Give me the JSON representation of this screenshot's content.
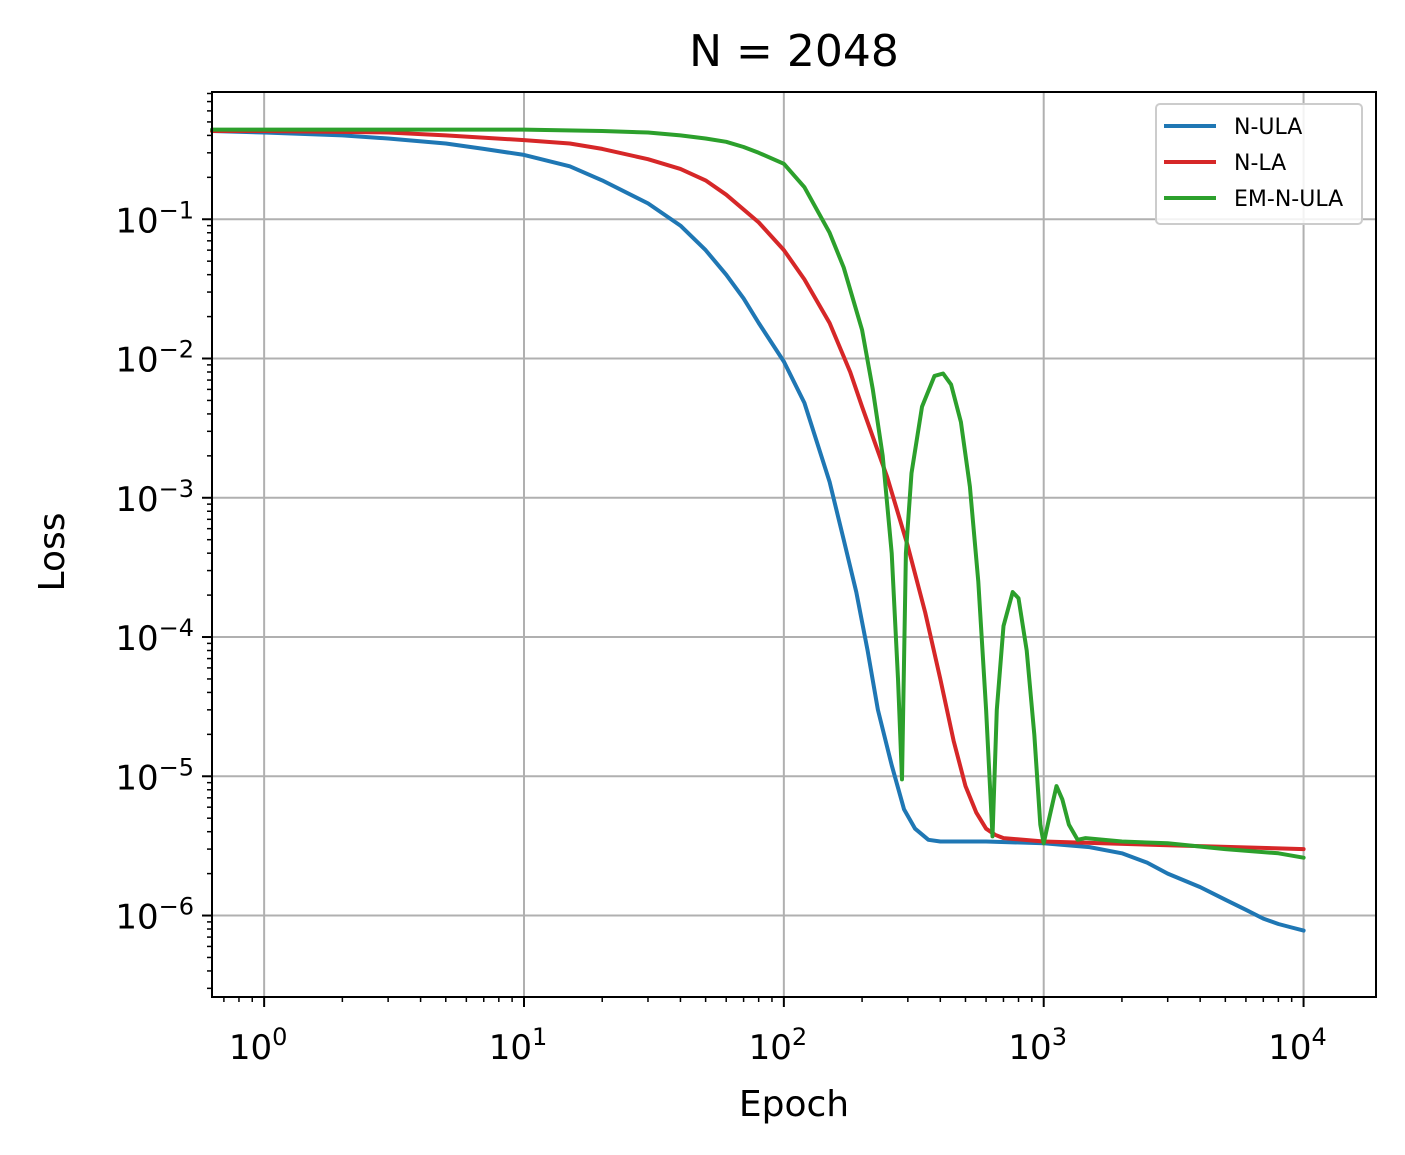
{
  "chart_data": {
    "type": "line",
    "title": "N = 2048",
    "xlabel": "Epoch",
    "ylabel": "Loss",
    "xscale": "log",
    "yscale": "log",
    "xlim": [
      0.63,
      19000
    ],
    "ylim": [
      2.6e-07,
      0.82
    ],
    "grid": true,
    "legend_position": "top-right",
    "x_ticks": [
      {
        "value": 1,
        "base": "10",
        "exp": "0"
      },
      {
        "value": 10,
        "base": "10",
        "exp": "1"
      },
      {
        "value": 100,
        "base": "10",
        "exp": "2"
      },
      {
        "value": 1000,
        "base": "10",
        "exp": "3"
      },
      {
        "value": 10000,
        "base": "10",
        "exp": "4"
      }
    ],
    "y_ticks": [
      {
        "value": 0.1,
        "base": "10",
        "exp": "−1"
      },
      {
        "value": 0.01,
        "base": "10",
        "exp": "−2"
      },
      {
        "value": 0.001,
        "base": "10",
        "exp": "−3"
      },
      {
        "value": 0.0001,
        "base": "10",
        "exp": "−4"
      },
      {
        "value": 1e-05,
        "base": "10",
        "exp": "−5"
      },
      {
        "value": 1e-06,
        "base": "10",
        "exp": "−6"
      }
    ],
    "series": [
      {
        "name": "N-ULA",
        "color": "#1f77b4",
        "points": [
          [
            0.63,
            0.43
          ],
          [
            1,
            0.42
          ],
          [
            2,
            0.4
          ],
          [
            3,
            0.38
          ],
          [
            5,
            0.35
          ],
          [
            7,
            0.32
          ],
          [
            10,
            0.29
          ],
          [
            15,
            0.24
          ],
          [
            20,
            0.19
          ],
          [
            30,
            0.13
          ],
          [
            40,
            0.09
          ],
          [
            50,
            0.06
          ],
          [
            60,
            0.04
          ],
          [
            70,
            0.027
          ],
          [
            80,
            0.018
          ],
          [
            100,
            0.0095
          ],
          [
            120,
            0.0048
          ],
          [
            150,
            0.0013
          ],
          [
            170,
            0.0005
          ],
          [
            190,
            0.00021
          ],
          [
            210,
            8e-05
          ],
          [
            230,
            3e-05
          ],
          [
            260,
            1.2e-05
          ],
          [
            290,
            5.8e-06
          ],
          [
            320,
            4.2e-06
          ],
          [
            360,
            3.5e-06
          ],
          [
            400,
            3.4e-06
          ],
          [
            600,
            3.4e-06
          ],
          [
            1000,
            3.3e-06
          ],
          [
            1500,
            3.1e-06
          ],
          [
            2000,
            2.8e-06
          ],
          [
            2500,
            2.4e-06
          ],
          [
            3000,
            2e-06
          ],
          [
            4000,
            1.6e-06
          ],
          [
            5000,
            1.3e-06
          ],
          [
            6000,
            1.1e-06
          ],
          [
            7000,
            9.5e-07
          ],
          [
            8000,
            8.7e-07
          ],
          [
            9000,
            8.2e-07
          ],
          [
            10000,
            7.8e-07
          ]
        ]
      },
      {
        "name": "N-LA",
        "color": "#d62728",
        "points": [
          [
            0.63,
            0.43
          ],
          [
            1,
            0.43
          ],
          [
            3,
            0.42
          ],
          [
            5,
            0.4
          ],
          [
            10,
            0.37
          ],
          [
            15,
            0.35
          ],
          [
            20,
            0.32
          ],
          [
            30,
            0.27
          ],
          [
            40,
            0.23
          ],
          [
            50,
            0.19
          ],
          [
            60,
            0.15
          ],
          [
            80,
            0.095
          ],
          [
            100,
            0.06
          ],
          [
            120,
            0.037
          ],
          [
            150,
            0.018
          ],
          [
            180,
            0.008
          ],
          [
            200,
            0.0045
          ],
          [
            250,
            0.0014
          ],
          [
            300,
            0.00045
          ],
          [
            350,
            0.00015
          ],
          [
            400,
            5e-05
          ],
          [
            450,
            1.8e-05
          ],
          [
            500,
            8.5e-06
          ],
          [
            550,
            5.5e-06
          ],
          [
            600,
            4.2e-06
          ],
          [
            650,
            3.8e-06
          ],
          [
            700,
            3.6e-06
          ],
          [
            1000,
            3.4e-06
          ],
          [
            3000,
            3.2e-06
          ],
          [
            10000,
            3e-06
          ]
        ]
      },
      {
        "name": "EM-N-ULA",
        "color": "#2ca02c",
        "points": [
          [
            0.63,
            0.44
          ],
          [
            1,
            0.44
          ],
          [
            5,
            0.44
          ],
          [
            10,
            0.44
          ],
          [
            20,
            0.43
          ],
          [
            30,
            0.42
          ],
          [
            40,
            0.4
          ],
          [
            50,
            0.38
          ],
          [
            60,
            0.36
          ],
          [
            70,
            0.33
          ],
          [
            80,
            0.3
          ],
          [
            100,
            0.25
          ],
          [
            120,
            0.17
          ],
          [
            150,
            0.08
          ],
          [
            170,
            0.045
          ],
          [
            200,
            0.016
          ],
          [
            220,
            0.006
          ],
          [
            240,
            0.002
          ],
          [
            260,
            0.0004
          ],
          [
            275,
            5e-05
          ],
          [
            285,
            9.5e-06
          ],
          [
            295,
            0.0004
          ],
          [
            310,
            0.0015
          ],
          [
            340,
            0.0045
          ],
          [
            380,
            0.0075
          ],
          [
            410,
            0.0078
          ],
          [
            440,
            0.0065
          ],
          [
            480,
            0.0035
          ],
          [
            520,
            0.0012
          ],
          [
            560,
            0.00025
          ],
          [
            600,
            3e-05
          ],
          [
            635,
            3.7e-06
          ],
          [
            660,
            3e-05
          ],
          [
            700,
            0.00012
          ],
          [
            760,
            0.00021
          ],
          [
            800,
            0.00019
          ],
          [
            860,
            8e-05
          ],
          [
            920,
            2e-05
          ],
          [
            970,
            4.5e-06
          ],
          [
            1000,
            3.3e-06
          ],
          [
            1050,
            5e-06
          ],
          [
            1120,
            8.5e-06
          ],
          [
            1180,
            6.8e-06
          ],
          [
            1250,
            4.5e-06
          ],
          [
            1350,
            3.5e-06
          ],
          [
            1450,
            3.6e-06
          ],
          [
            2000,
            3.4e-06
          ],
          [
            3000,
            3.3e-06
          ],
          [
            5000,
            3e-06
          ],
          [
            8000,
            2.8e-06
          ],
          [
            10000,
            2.6e-06
          ]
        ]
      }
    ]
  }
}
